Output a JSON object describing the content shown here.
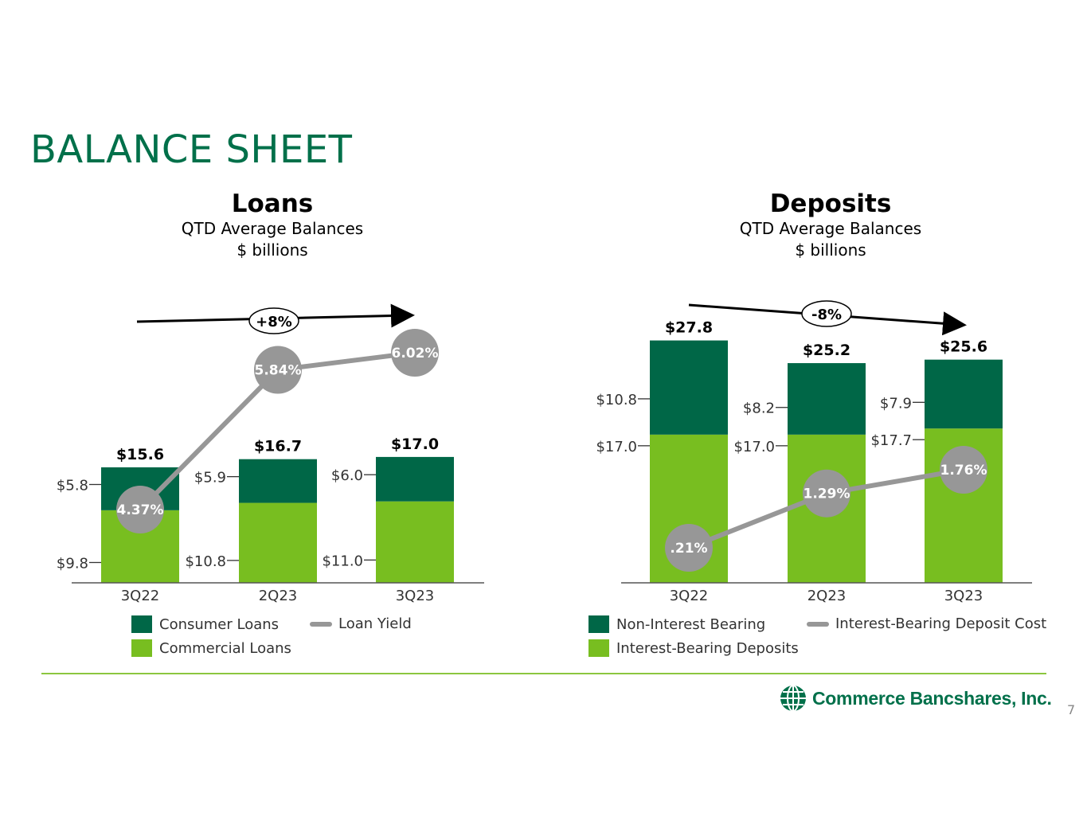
{
  "page": {
    "title": "BALANCE SHEET",
    "page_number": "7",
    "company": "Commerce Bancshares, Inc."
  },
  "colors": {
    "title": "#00704a",
    "dark_green": "#006747",
    "light_green": "#78be20",
    "gray": "#979797",
    "rule": "#8cc63f"
  },
  "chart_data": [
    {
      "type": "bar",
      "id": "loans",
      "stacked": true,
      "title": "Loans",
      "subtitle": [
        "QTD Average Balances",
        "$ billions"
      ],
      "categories": [
        "3Q22",
        "2Q23",
        "3Q23"
      ],
      "series": [
        {
          "name": "Commercial Loans",
          "values": [
            9.8,
            10.8,
            11.0
          ],
          "labels": [
            "$9.8",
            "$10.8",
            "$11.0"
          ],
          "color": "#78be20"
        },
        {
          "name": "Consumer Loans",
          "values": [
            5.8,
            5.9,
            6.0
          ],
          "labels": [
            "$5.8",
            "$5.9",
            "$6.0"
          ],
          "color": "#006747"
        }
      ],
      "totals": [
        "$15.6",
        "$16.7",
        "$17.0"
      ],
      "line": {
        "name": "Loan Yield",
        "values": [
          4.37,
          5.84,
          6.02
        ],
        "labels": [
          "4.37%",
          "5.84%",
          "6.02%"
        ],
        "color": "#979797"
      },
      "change": "+8%",
      "legend": [
        "Consumer Loans",
        "Loan Yield",
        "Commercial Loans"
      ],
      "ylim": [
        0,
        31
      ]
    },
    {
      "type": "bar",
      "id": "deposits",
      "stacked": true,
      "title": "Deposits",
      "subtitle": [
        "QTD Average Balances",
        "$ billions"
      ],
      "categories": [
        "3Q22",
        "2Q23",
        "3Q23"
      ],
      "series": [
        {
          "name": "Interest-Bearing Deposits",
          "values": [
            17.0,
            17.0,
            17.7
          ],
          "labels": [
            "$17.0",
            "$17.0",
            "$17.7"
          ],
          "color": "#78be20"
        },
        {
          "name": "Non-Interest Bearing",
          "values": [
            10.8,
            8.2,
            7.9
          ],
          "labels": [
            "$10.8",
            "$8.2",
            "$7.9"
          ],
          "color": "#006747"
        }
      ],
      "totals": [
        "$27.8",
        "$25.2",
        "$25.6"
      ],
      "line": {
        "name": "Interest-Bearing Deposit Cost",
        "values": [
          0.21,
          1.29,
          1.76
        ],
        "labels": [
          ".21%",
          "1.29%",
          "1.76%"
        ],
        "color": "#979797"
      },
      "change": "-8%",
      "legend": [
        "Non-Interest Bearing",
        "Interest-Bearing Deposit Cost",
        "Interest-Bearing Deposits"
      ],
      "ylim": [
        0,
        31
      ]
    }
  ]
}
